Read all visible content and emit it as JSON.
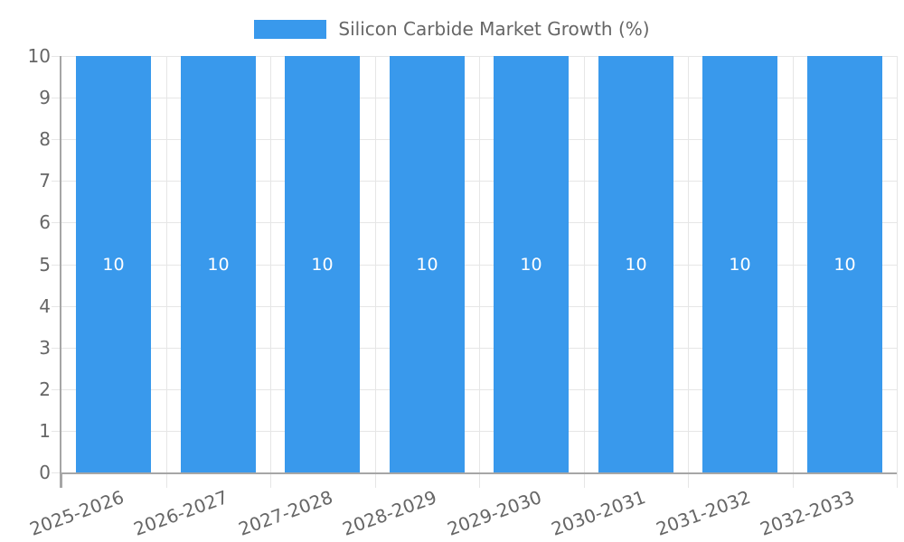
{
  "legend": {
    "label": "Silicon Carbide Market Growth (%)"
  },
  "colors": {
    "bar": "#3999EC",
    "grid": "#e6e6e6",
    "axis": "#a6a6a6",
    "tick_text": "#666666",
    "bar_label_text": "#ffffff",
    "background": "#ffffff"
  },
  "chart_data": {
    "type": "bar",
    "categories": [
      "2025-2026",
      "2026-2027",
      "2027-2028",
      "2028-2029",
      "2029-2030",
      "2030-2031",
      "2031-2032",
      "2032-2033"
    ],
    "series": [
      {
        "name": "Silicon Carbide Market Growth (%)",
        "values": [
          10,
          10,
          10,
          10,
          10,
          10,
          10,
          10
        ]
      }
    ],
    "bar_value_labels": [
      "10",
      "10",
      "10",
      "10",
      "10",
      "10",
      "10",
      "10"
    ],
    "ylim": [
      0,
      10
    ],
    "yticks": [
      0,
      1,
      2,
      3,
      4,
      5,
      6,
      7,
      8,
      9,
      10
    ],
    "xlabel": "",
    "ylabel": "",
    "grid": true,
    "legend_position": "top",
    "x_tick_rotation_deg": -20
  }
}
